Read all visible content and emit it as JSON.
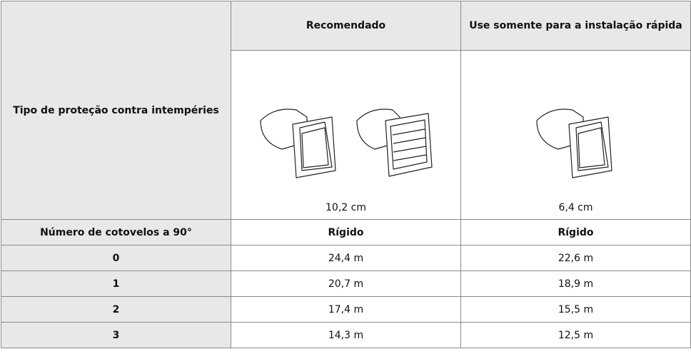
{
  "table": {
    "header": [
      "Tipo de proteção contra intempéries",
      "Recomendado",
      "Use somente para a instalação rápida"
    ],
    "sizes": [
      "10,2 cm",
      "6,4 cm"
    ],
    "subheader": [
      "Número de cotovelos a 90°",
      "Rígido",
      "Rígido"
    ],
    "rows": [
      [
        "0",
        "24,4 m",
        "22,6 m"
      ],
      [
        "1",
        "20,7 m",
        "18,9 m"
      ],
      [
        "2",
        "17,4 m",
        "15,5 m"
      ],
      [
        "3",
        "14,3 m",
        "12,5 m"
      ]
    ]
  }
}
